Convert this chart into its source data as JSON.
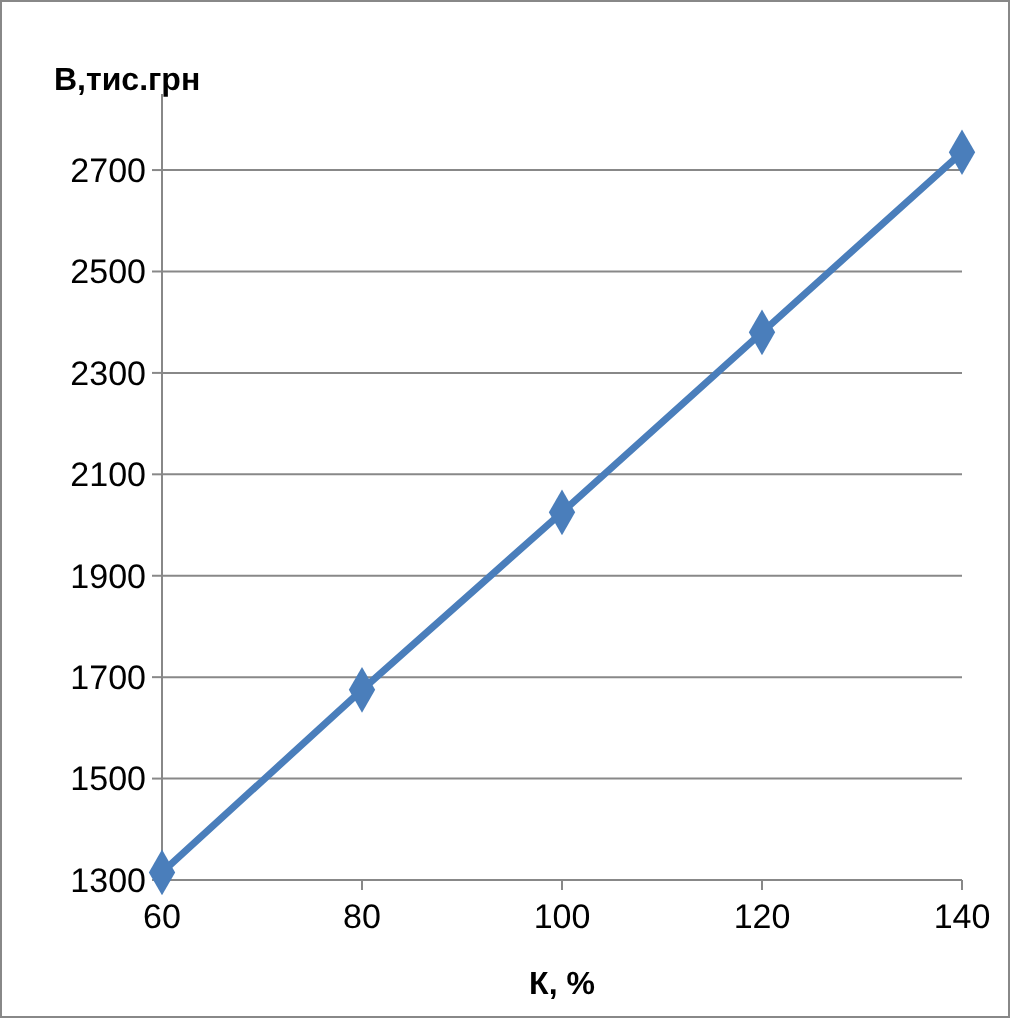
{
  "chart_data": {
    "type": "line",
    "xlabel": "К, %",
    "ylabel": "В,тис.грн",
    "x": [
      60,
      80,
      100,
      120,
      140
    ],
    "series": [
      {
        "color": "#4a7ebb",
        "values": [
          1315,
          1675,
          2025,
          2380,
          2735
        ]
      }
    ],
    "xlim": [
      60,
      140
    ],
    "xticks": [
      60,
      80,
      100,
      120,
      140
    ],
    "ylim": [
      1300,
      2850
    ],
    "yticks": [
      1300,
      1500,
      1700,
      1900,
      2100,
      2300,
      2500,
      2700
    ],
    "grid": "y",
    "marker": "diamond",
    "line_style": "solid"
  }
}
